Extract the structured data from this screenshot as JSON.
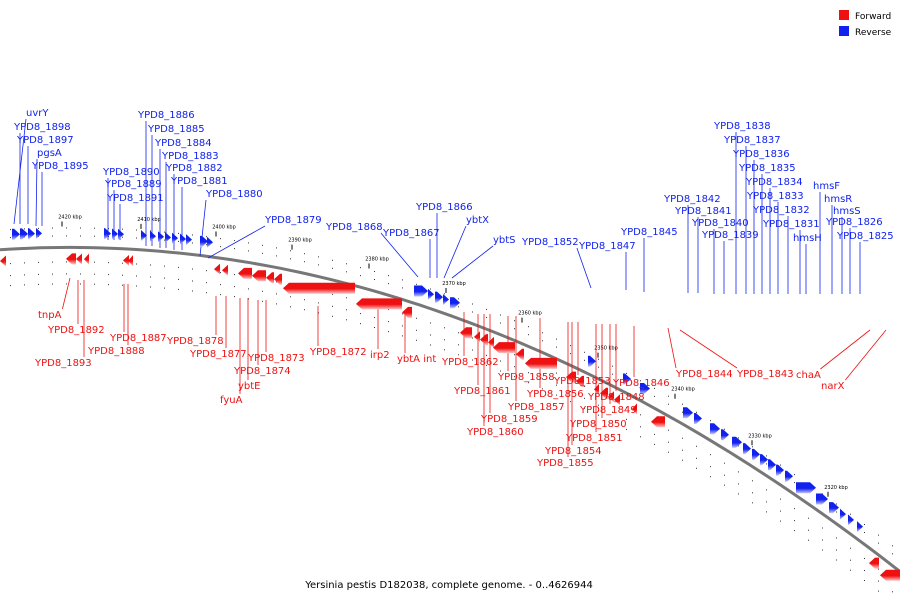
{
  "colors": {
    "forward": "#ee1111",
    "reverse": "#1122ee",
    "backbone": "#777777"
  },
  "legend": [
    {
      "label": "Forward",
      "color": "#ee1111"
    },
    {
      "label": "Reverse",
      "color": "#1122ee"
    }
  ],
  "caption": "Yersinia pestis D182038, complete genome. - 0..4626944",
  "kbp_ticks": [
    "2420 kbp",
    "2410 kbp",
    "2400 kbp",
    "2390 kbp",
    "2380 kbp",
    "2370 kbp",
    "2360 kbp",
    "2350 kbp",
    "2340 kbp",
    "2330 kbp",
    "2320 kbp"
  ],
  "reverse_labels": [
    "uvrY",
    "YPD8_1898",
    "YPD8_1897",
    "pgsA",
    "YPD8_1895",
    "YPD8_1890",
    "YPD8_1889",
    "YPD8_1891",
    "YPD8_1886",
    "YPD8_1885",
    "YPD8_1884",
    "YPD8_1883",
    "YPD8_1882",
    "YPD8_1881",
    "YPD8_1880",
    "YPD8_1879",
    "YPD8_1868",
    "YPD8_1867",
    "YPD8_1866",
    "ybtX",
    "ybtS",
    "YPD8_1852",
    "YPD8_1847",
    "YPD8_1845",
    "YPD8_1842",
    "YPD8_1841",
    "YPD8_1840",
    "YPD8_1839",
    "YPD8_1838",
    "YPD8_1837",
    "YPD8_1836",
    "YPD8_1835",
    "YPD8_1834",
    "YPD8_1833",
    "YPD8_1832",
    "YPD8_1831",
    "hmsH",
    "hmsF",
    "hmsR",
    "hmsS",
    "YPD8_1826",
    "YPD8_1825"
  ],
  "forward_labels": [
    "tnpA",
    "YPD8_1892",
    "YPD8_1893",
    "YPD8_1887",
    "YPD8_1888",
    "YPD8_1878",
    "YPD8_1877",
    "fyuA",
    "ybtE",
    "YPD8_1874",
    "YPD8_1873",
    "YPD8_1872",
    "irp2",
    "ybtA int",
    "YPD8_1862",
    "YPD8_1861",
    "YPD8_1860",
    "YPD8_1859",
    "YPD8_1858",
    "YPD8_1857",
    "YPD8_1856",
    "YPD8_1855",
    "YPD8_1854",
    "YPD8_1853",
    "YPD8_1851",
    "YPD8_1850",
    "YPD8_1849",
    "YPD8_1848",
    "YPD8_1846",
    "YPD8_1844",
    "YPD8_1843",
    "chaA",
    "narX"
  ]
}
